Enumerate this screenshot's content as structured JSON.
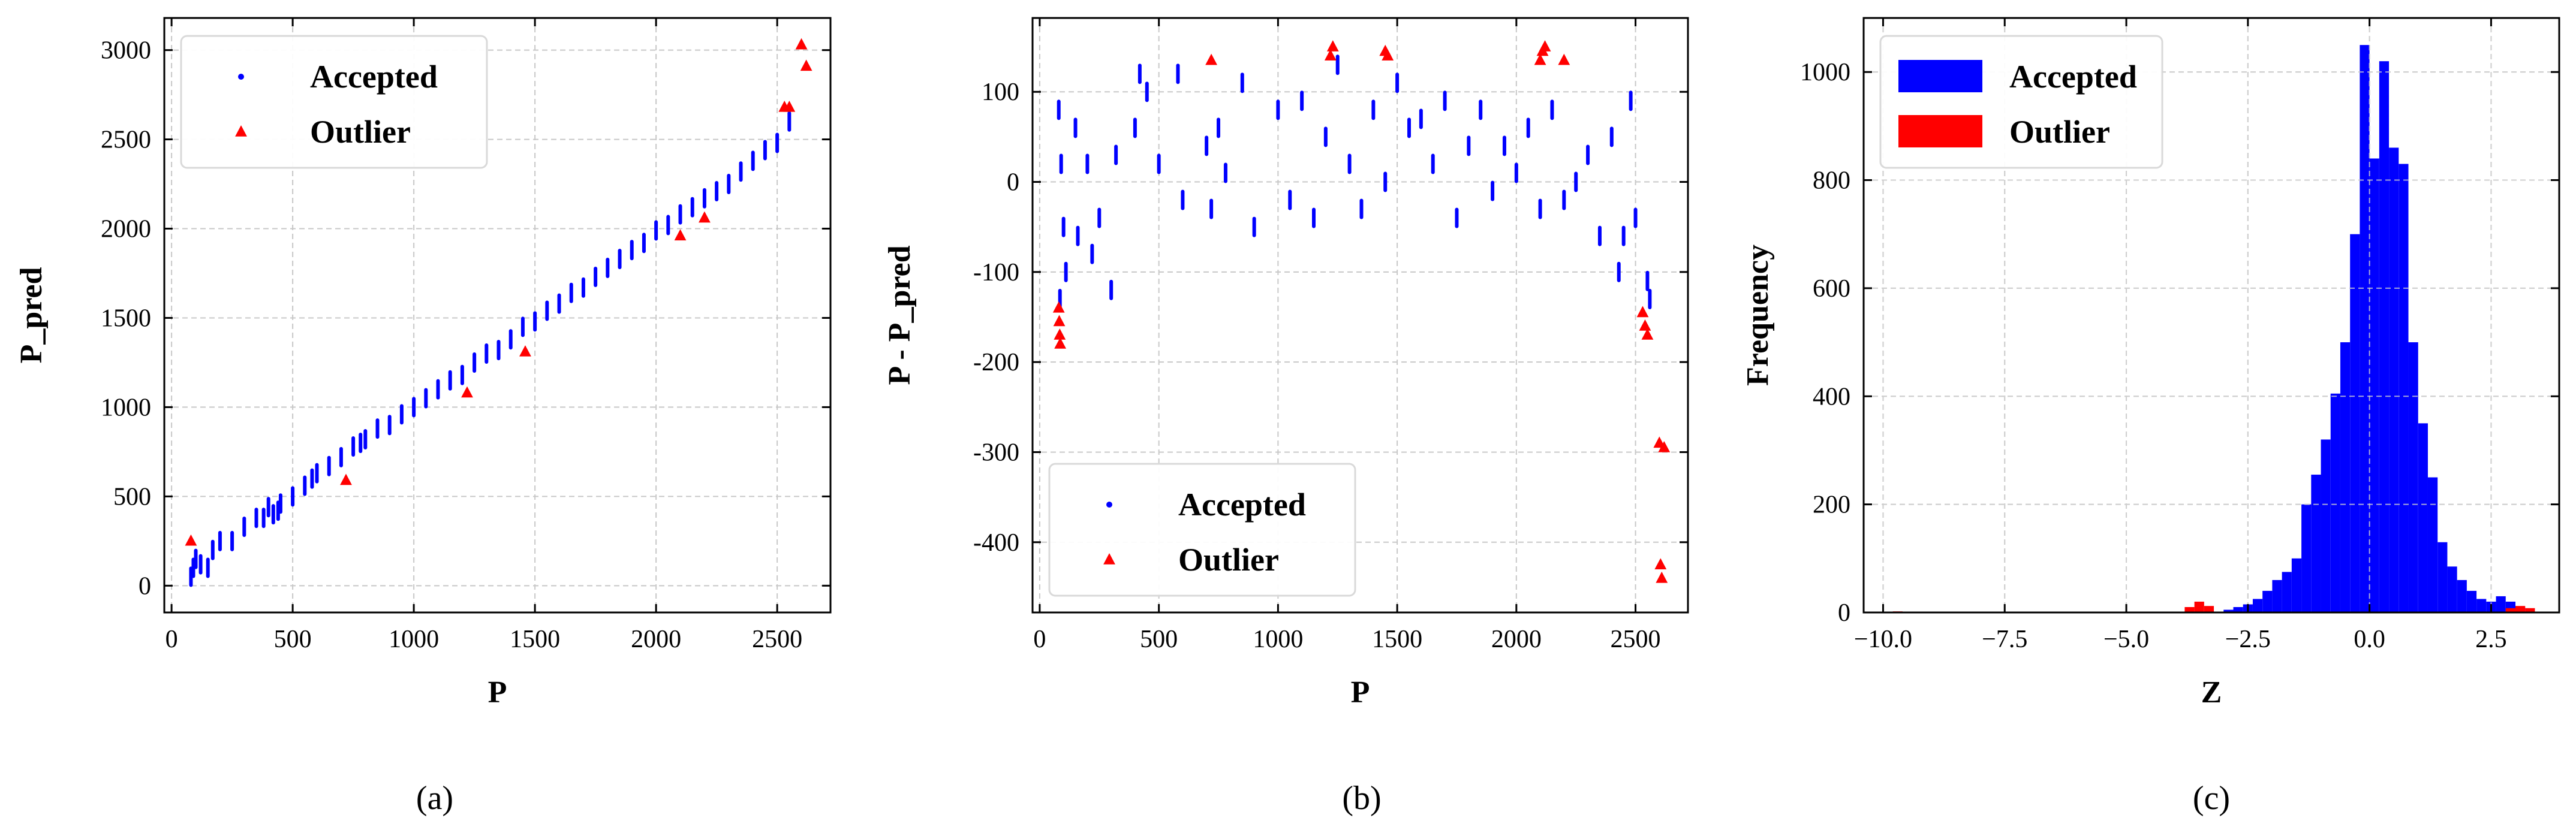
{
  "colors": {
    "accepted": "#0000ff",
    "outlier": "#ff0000",
    "grid": "#c8c8c8"
  },
  "chart_data": [
    {
      "type": "scatter",
      "caption": "(a)",
      "xlabel": "P",
      "ylabel": "P_pred",
      "xlim": [
        -30,
        2720
      ],
      "ylim": [
        -150,
        3180
      ],
      "xticks": [
        0,
        500,
        1000,
        1500,
        2000,
        2500
      ],
      "yticks": [
        0,
        500,
        1000,
        1500,
        2000,
        2500,
        3000
      ],
      "legend": {
        "position": "top-left",
        "entries": [
          "Accepted",
          "Outlier"
        ]
      },
      "series": [
        {
          "name": "Accepted",
          "marker": "dot",
          "x": [
            80,
            90,
            100,
            120,
            150,
            170,
            200,
            250,
            300,
            350,
            380,
            400,
            420,
            440,
            450,
            500,
            550,
            580,
            600,
            650,
            700,
            750,
            780,
            800,
            850,
            900,
            950,
            1000,
            1050,
            1100,
            1150,
            1200,
            1250,
            1300,
            1350,
            1400,
            1450,
            1500,
            1550,
            1600,
            1650,
            1700,
            1750,
            1800,
            1850,
            1900,
            1950,
            2000,
            2050,
            2100,
            2150,
            2200,
            2250,
            2300,
            2350,
            2400,
            2450,
            2500,
            2550
          ],
          "y": [
            50,
            100,
            150,
            120,
            100,
            200,
            250,
            250,
            330,
            380,
            380,
            440,
            400,
            420,
            460,
            500,
            560,
            600,
            630,
            670,
            720,
            780,
            800,
            820,
            880,
            900,
            960,
            1000,
            1050,
            1100,
            1150,
            1180,
            1250,
            1300,
            1320,
            1380,
            1450,
            1480,
            1540,
            1580,
            1640,
            1670,
            1730,
            1780,
            1830,
            1880,
            1920,
            1990,
            2020,
            2080,
            2120,
            2170,
            2210,
            2250,
            2320,
            2380,
            2440,
            2480,
            2600
          ]
        },
        {
          "name": "Outlier",
          "marker": "triangle",
          "x": [
            80,
            720,
            1220,
            1460,
            2100,
            2200,
            2530,
            2550,
            2600,
            2620
          ],
          "y": [
            250,
            590,
            1080,
            1310,
            1960,
            2060,
            2680,
            2680,
            3030,
            2910
          ]
        }
      ]
    },
    {
      "type": "scatter",
      "caption": "(b)",
      "xlabel": "P",
      "ylabel": "P - P_pred",
      "xlim": [
        -30,
        2720
      ],
      "ylim": [
        -478,
        182
      ],
      "xticks": [
        0,
        500,
        1000,
        1500,
        2000,
        2500
      ],
      "yticks": [
        -400,
        -300,
        -200,
        -100,
        0,
        100
      ],
      "legend": {
        "position": "bottom-left",
        "entries": [
          "Accepted",
          "Outlier"
        ]
      },
      "series": [
        {
          "name": "Accepted",
          "marker": "dot",
          "x": [
            80,
            85,
            90,
            100,
            110,
            150,
            160,
            200,
            220,
            250,
            300,
            320,
            400,
            420,
            450,
            500,
            580,
            600,
            700,
            720,
            750,
            780,
            850,
            900,
            1000,
            1050,
            1100,
            1150,
            1200,
            1250,
            1300,
            1350,
            1400,
            1450,
            1500,
            1550,
            1600,
            1650,
            1700,
            1750,
            1800,
            1850,
            1900,
            1950,
            2000,
            2050,
            2100,
            2150,
            2200,
            2250,
            2300,
            2350,
            2400,
            2430,
            2450,
            2480,
            2500,
            2550,
            2560
          ],
          "y": [
            80,
            -130,
            20,
            -50,
            -100,
            60,
            -60,
            20,
            -80,
            -40,
            -120,
            30,
            60,
            120,
            100,
            20,
            120,
            -20,
            40,
            -30,
            60,
            10,
            110,
            -50,
            80,
            -20,
            90,
            -40,
            50,
            130,
            20,
            -30,
            80,
            0,
            110,
            60,
            70,
            20,
            90,
            -40,
            40,
            80,
            -10,
            40,
            10,
            60,
            -30,
            80,
            -20,
            0,
            30,
            -60,
            50,
            -100,
            -60,
            90,
            -40,
            -110,
            -130
          ]
        },
        {
          "name": "Outlier",
          "marker": "triangle",
          "x": [
            80,
            82,
            84,
            86,
            720,
            1220,
            1230,
            1450,
            1460,
            2100,
            2110,
            2120,
            2200,
            2530,
            2540,
            2550,
            2600,
            2605,
            2610,
            2620
          ],
          "y": [
            -140,
            -155,
            -170,
            -180,
            135,
            140,
            150,
            145,
            140,
            135,
            145,
            150,
            135,
            -145,
            -160,
            -170,
            -290,
            -425,
            -440,
            -295
          ]
        }
      ]
    },
    {
      "type": "histogram",
      "caption": "(c)",
      "xlabel": "Z",
      "ylabel": "Frequency",
      "xlim": [
        -10.4,
        3.9
      ],
      "ylim": [
        0,
        1100
      ],
      "xticks": [
        -10.0,
        -7.5,
        -5.0,
        -2.5,
        0.0,
        2.5
      ],
      "xtick_labels": [
        "−10.0",
        "−7.5",
        "−5.0",
        "−2.5",
        "0.0",
        "2.5"
      ],
      "yticks": [
        0,
        200,
        400,
        600,
        800,
        1000
      ],
      "legend": {
        "position": "top-left",
        "entries": [
          "Accepted",
          "Outlier"
        ]
      },
      "bin_width": 0.2,
      "series": [
        {
          "name": "Accepted",
          "bins": [
            -3.0,
            -2.8,
            -2.6,
            -2.4,
            -2.2,
            -2.0,
            -1.8,
            -1.6,
            -1.4,
            -1.2,
            -1.0,
            -0.8,
            -0.6,
            -0.4,
            -0.2,
            0.0,
            0.2,
            0.4,
            0.6,
            0.8,
            1.0,
            1.2,
            1.4,
            1.6,
            1.8,
            2.0,
            2.2,
            2.4,
            2.6,
            2.8,
            3.0
          ],
          "values": [
            5,
            10,
            15,
            25,
            40,
            60,
            75,
            100,
            200,
            255,
            320,
            405,
            500,
            700,
            1050,
            840,
            1020,
            860,
            830,
            500,
            350,
            250,
            130,
            85,
            60,
            40,
            25,
            20,
            30,
            20,
            10
          ]
        },
        {
          "name": "Outlier",
          "bins": [
            -9.8,
            -3.8,
            -3.6,
            -3.4,
            2.8,
            3.0,
            3.2
          ],
          "values": [
            2,
            10,
            20,
            12,
            8,
            12,
            8
          ]
        }
      ]
    }
  ]
}
